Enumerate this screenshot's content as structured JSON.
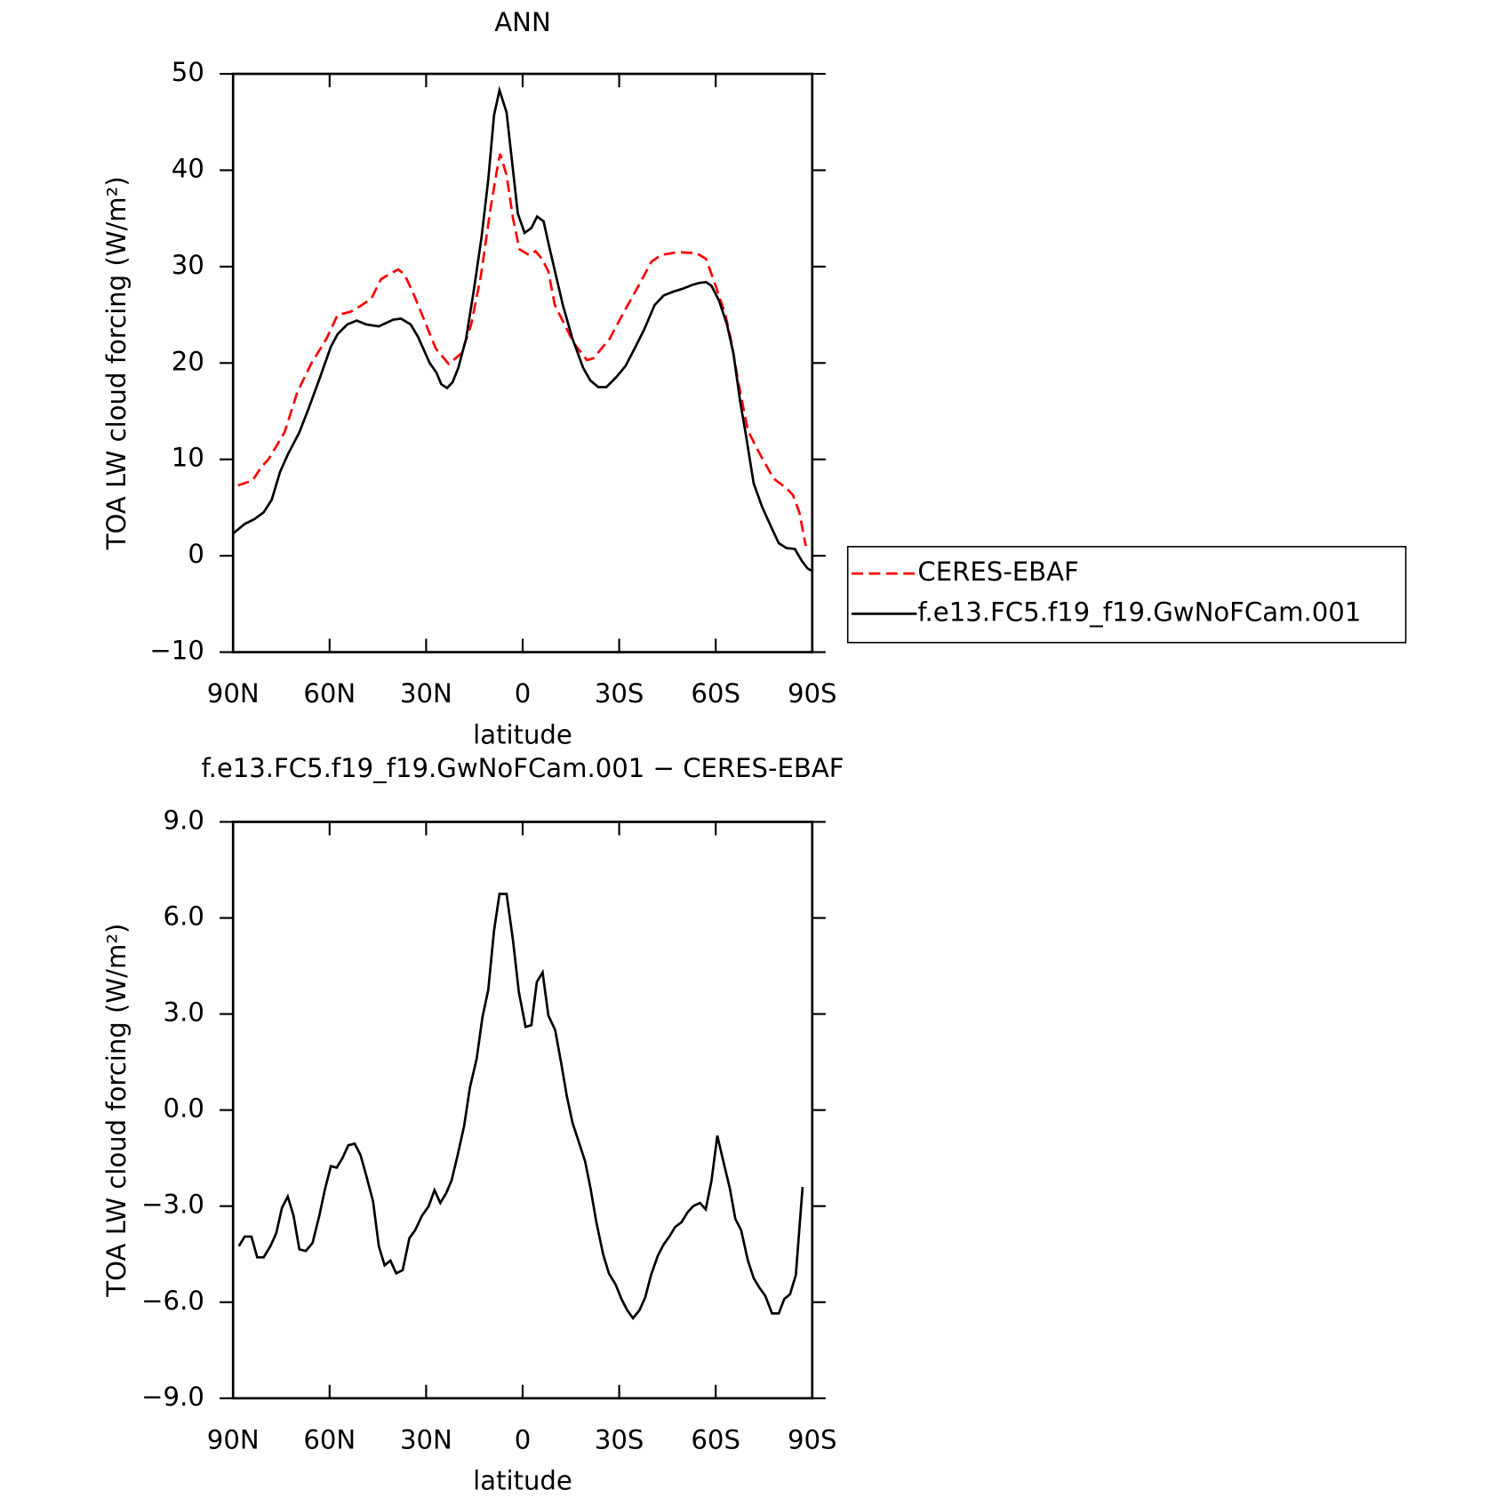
{
  "chart_data": [
    {
      "type": "line",
      "title": "ANN",
      "xlabel": "latitude",
      "ylabel": "TOA LW cloud forcing (W/m²)",
      "xlim": [
        90,
        -90
      ],
      "xticks": [
        {
          "value": 90,
          "label": "90N"
        },
        {
          "value": 60,
          "label": "60N"
        },
        {
          "value": 30,
          "label": "30N"
        },
        0,
        {
          "value": -30,
          "label": "30S"
        },
        {
          "value": -60,
          "label": "60S"
        },
        {
          "value": -90,
          "label": "90S"
        }
      ],
      "ylim": [
        -10,
        50
      ],
      "yticks": [
        {
          "value": -10,
          "label": "−10"
        },
        0,
        10,
        20,
        30,
        40,
        50
      ],
      "legend": "outside right",
      "series": [
        {
          "name": "CERES-EBAF",
          "color": "#ff0000",
          "style": "dashed",
          "x": [
            88.5,
            84,
            81,
            79,
            74,
            70,
            65.6,
            61,
            57.5,
            53.6,
            50,
            47,
            44,
            41,
            38.7,
            36.7,
            33.7,
            29.8,
            27,
            23,
            19,
            16,
            13,
            10,
            8,
            7,
            5,
            3,
            1,
            -2,
            -4,
            -6,
            -8,
            -10,
            -13,
            -16,
            -20,
            -22,
            -27,
            -31,
            -36,
            -40,
            -43,
            -48,
            -54,
            -57,
            -60,
            -63,
            -65,
            -67,
            -70,
            -73,
            -78,
            -82,
            -84,
            -86,
            -88
          ],
          "values": [
            7.3,
            7.8,
            9.3,
            10,
            12.8,
            17,
            20,
            22.5,
            25,
            25.3,
            26,
            26.7,
            28.7,
            29.3,
            29.7,
            29.2,
            27,
            23.8,
            21.5,
            19.9,
            21,
            24,
            29,
            36,
            40,
            41.7,
            39.5,
            35,
            31.8,
            31.2,
            31.6,
            30.8,
            29.5,
            26,
            24,
            22,
            20.3,
            20.5,
            22.5,
            25,
            28,
            30.5,
            31.2,
            31.5,
            31.4,
            30.8,
            28,
            25,
            22,
            18,
            13,
            11,
            8,
            7,
            6.3,
            4.5,
            1
          ]
        },
        {
          "name": "f.e13.FC5.f19_f19.GwNoFCam.001",
          "color": "#000000",
          "style": "solid",
          "x": [
            90,
            86.4,
            83.4,
            80.5,
            78,
            75.4,
            73,
            69.4,
            66.5,
            63.2,
            59.6,
            57.5,
            54.5,
            51.6,
            48.6,
            44.7,
            40.2,
            37.8,
            34.8,
            32.5,
            28.9,
            26.8,
            25.3,
            23.5,
            21.8,
            20,
            17.6,
            15.2,
            12.8,
            10.7,
            8.9,
            7.2,
            5,
            3,
            1.5,
            -0.6,
            -2.7,
            -4.5,
            -6.5,
            -8.3,
            -10.4,
            -12.5,
            -15.5,
            -18.8,
            -21,
            -23.5,
            -26,
            -29,
            -32,
            -34.8,
            -37.8,
            -41,
            -43.8,
            -46.8,
            -49.7,
            -52.7,
            -54.8,
            -57,
            -58.7,
            -61,
            -63.5,
            -65.5,
            -67.6,
            -69.4,
            -71.8,
            -74.5,
            -77.5,
            -79.6,
            -82,
            -84.6,
            -86.7,
            -88.5,
            -90
          ],
          "values": [
            2.3,
            3.3,
            3.8,
            4.5,
            5.8,
            8.7,
            10.5,
            12.8,
            15.3,
            18.3,
            21.7,
            23,
            24,
            24.4,
            24,
            23.8,
            24.5,
            24.6,
            24,
            22.7,
            20,
            19,
            17.8,
            17.4,
            18,
            19.5,
            22.5,
            27.5,
            33,
            39,
            45.7,
            48.3,
            46,
            40,
            35.5,
            33.5,
            34,
            35.2,
            34.7,
            32,
            29,
            26,
            22.5,
            19.5,
            18.2,
            17.5,
            17.5,
            18.5,
            19.7,
            21.5,
            23.5,
            26,
            27,
            27.4,
            27.7,
            28.1,
            28.3,
            28.4,
            28,
            26.5,
            24,
            21,
            16,
            12.5,
            7.5,
            5,
            2.8,
            1.3,
            0.8,
            0.7,
            -0.5,
            -1.3,
            -1.6
          ]
        }
      ]
    },
    {
      "type": "line",
      "title": "f.e13.FC5.f19_f19.GwNoFCam.001 − CERES-EBAF",
      "xlabel": "latitude",
      "ylabel": "TOA LW cloud forcing (W/m²)",
      "xlim": [
        90,
        -90
      ],
      "xticks": [
        {
          "value": 90,
          "label": "90N"
        },
        {
          "value": 60,
          "label": "60N"
        },
        {
          "value": 30,
          "label": "30N"
        },
        0,
        {
          "value": -30,
          "label": "30S"
        },
        {
          "value": -60,
          "label": "60S"
        },
        {
          "value": -90,
          "label": "90S"
        }
      ],
      "ylim": [
        -9,
        9
      ],
      "yticks": [
        {
          "value": -9,
          "label": "−9.0"
        },
        {
          "value": -6,
          "label": "−6.0"
        },
        {
          "value": -3,
          "label": "−3.0"
        },
        {
          "value": 0,
          "label": "0.0"
        },
        {
          "value": 3,
          "label": "3.0"
        },
        {
          "value": 6,
          "label": "6.0"
        },
        {
          "value": 9,
          "label": "9.0"
        }
      ],
      "color": "#000000",
      "x": [
        88.2,
        86.4,
        84.3,
        82.5,
        80.5,
        78.4,
        76.6,
        74.8,
        73,
        71.2,
        69.4,
        67.4,
        65.3,
        63.2,
        61.4,
        59.6,
        57.8,
        56,
        54.2,
        52.2,
        50.4,
        48.6,
        46.5,
        44.7,
        42.9,
        41.1,
        39.3,
        37.3,
        35.2,
        33.4,
        31.3,
        29.2,
        27.4,
        25.6,
        23.8,
        22.1,
        20.3,
        18.2,
        16.4,
        14.3,
        12.5,
        10.7,
        8.9,
        7.2,
        5,
        3,
        1.2,
        -0.9,
        -2.7,
        -4.4,
        -6.2,
        -8,
        -10.1,
        -12,
        -13.7,
        -15.5,
        -17.3,
        -19.4,
        -21.1,
        -22.9,
        -25,
        -26.8,
        -28.9,
        -30.7,
        -32.5,
        -34.3,
        -36.3,
        -38.1,
        -39.9,
        -42,
        -43.8,
        -45.6,
        -47.4,
        -49.4,
        -51.2,
        -53,
        -55.1,
        -56.9,
        -58.7,
        -60.5,
        -62.6,
        -64.4,
        -66.1,
        -67.9,
        -70,
        -71.8,
        -73.6,
        -75.4,
        -77.5,
        -79.6,
        -81.3,
        -83.1,
        -84.9,
        -87
      ],
      "values": [
        -4.25,
        -3.95,
        -3.95,
        -4.6,
        -4.6,
        -4.25,
        -3.85,
        -3.05,
        -2.7,
        -3.3,
        -4.35,
        -4.4,
        -4.15,
        -3.3,
        -2.45,
        -1.75,
        -1.8,
        -1.5,
        -1.1,
        -1.05,
        -1.4,
        -2.05,
        -2.85,
        -4.25,
        -4.85,
        -4.7,
        -5.1,
        -5,
        -4,
        -3.75,
        -3.3,
        -3,
        -2.5,
        -2.9,
        -2.6,
        -2.2,
        -1.45,
        -0.5,
        0.7,
        1.6,
        2.9,
        3.75,
        5.6,
        6.75,
        6.75,
        5.3,
        3.7,
        2.6,
        2.65,
        4,
        4.3,
        2.95,
        2.5,
        1.45,
        0.45,
        -0.4,
        -0.95,
        -1.6,
        -2.45,
        -3.5,
        -4.5,
        -5.1,
        -5.45,
        -5.9,
        -6.25,
        -6.5,
        -6.25,
        -5.85,
        -5.15,
        -4.55,
        -4.2,
        -3.95,
        -3.65,
        -3.5,
        -3.2,
        -3,
        -2.9,
        -3.1,
        -2.2,
        -0.8,
        -1.7,
        -2.45,
        -3.4,
        -3.75,
        -4.7,
        -5.25,
        -5.55,
        -5.8,
        -6.35,
        -6.35,
        -5.9,
        -5.75,
        -5.15,
        -2.4
      ]
    }
  ]
}
